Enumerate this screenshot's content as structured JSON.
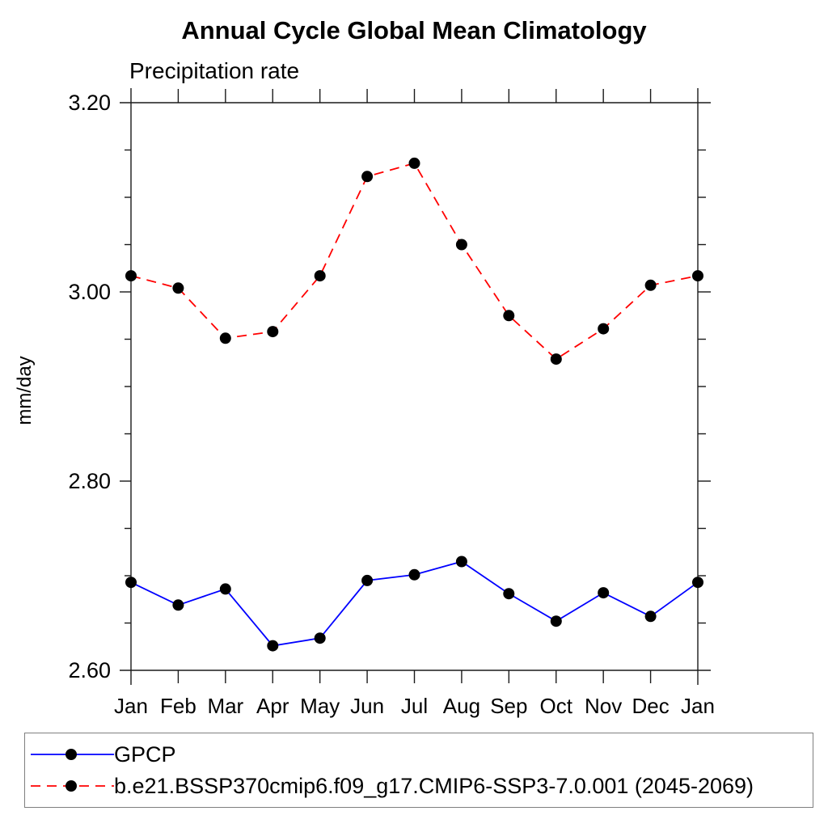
{
  "header": {
    "title": "Annual Cycle Global Mean Climatology",
    "subtitle": "Precipitation rate"
  },
  "chart_data": {
    "type": "line",
    "title": "Annual Cycle Global Mean Climatology",
    "subtitle": "Precipitation rate",
    "xlabel": "",
    "ylabel": "mm/day",
    "x_tick_labels": [
      "Jan",
      "Feb",
      "Mar",
      "Apr",
      "May",
      "Jun",
      "Jul",
      "Aug",
      "Sep",
      "Oct",
      "Nov",
      "Dec",
      "Jan"
    ],
    "y_tick_labels": [
      "3.20",
      "3.00",
      "2.80",
      "2.60"
    ],
    "y_tick_values": [
      3.2,
      3.0,
      2.8,
      2.6
    ],
    "ylim": [
      2.6,
      3.2
    ],
    "y_major_step": 0.2,
    "y_minor_step": 0.05,
    "grid": false,
    "legend_position": "bottom",
    "axis_color": "#1a1a1a",
    "marker_color": "#000000",
    "series": [
      {
        "name": "GPCP",
        "color": "#0000ff",
        "dashed": false,
        "marker": "circle",
        "values": [
          2.693,
          2.669,
          2.686,
          2.626,
          2.634,
          2.695,
          2.701,
          2.715,
          2.681,
          2.652,
          2.682,
          2.657,
          2.693
        ]
      },
      {
        "name": "b.e21.BSSP370cmip6.f09_g17.CMIP6-SSP3-7.0.001 (2045-2069)",
        "color": "#ff0000",
        "dashed": true,
        "marker": "circle",
        "values": [
          3.017,
          3.004,
          2.951,
          2.958,
          3.017,
          3.122,
          3.136,
          3.05,
          2.975,
          2.929,
          2.961,
          3.007,
          3.017
        ]
      }
    ]
  }
}
